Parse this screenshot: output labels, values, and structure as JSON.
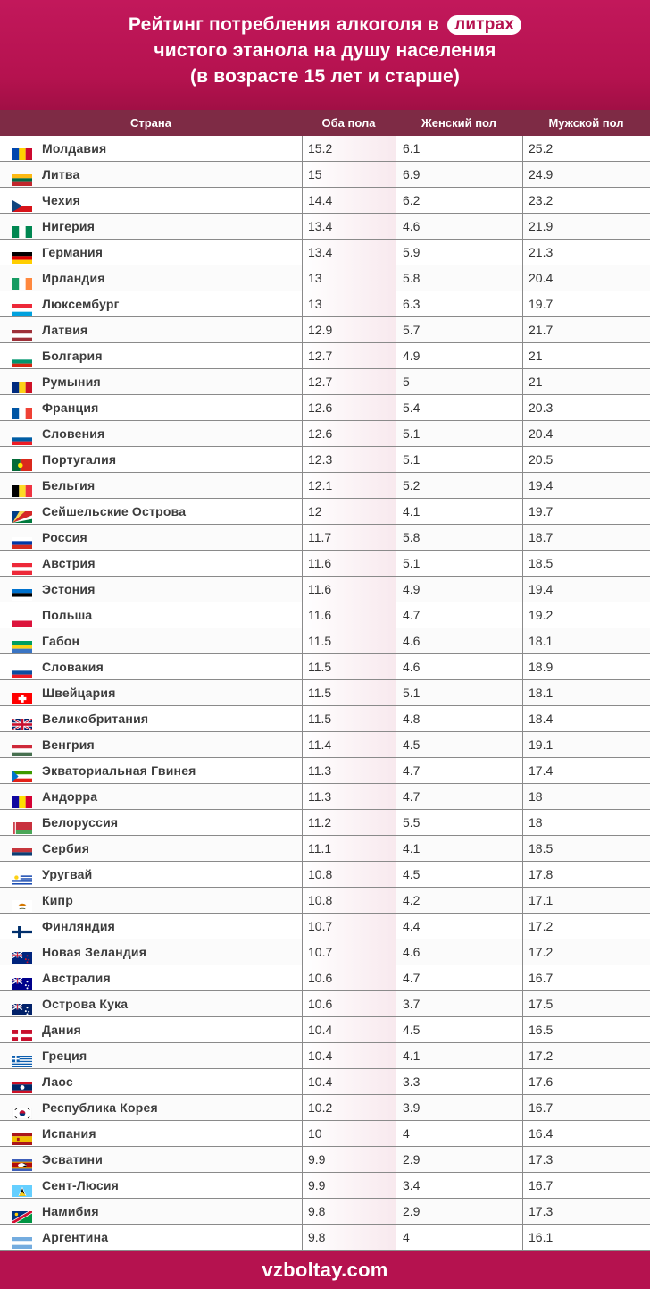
{
  "header": {
    "title_line1_prefix": "Рейтинг потребления алкоголя в",
    "title_highlight": "литрах",
    "title_line2": "чистого этанола на душу населения",
    "title_line3": "(в возрасте 15 лет и старше)"
  },
  "table": {
    "columns": [
      "Страна",
      "Оба пола",
      "Женский пол",
      "Мужской пол"
    ],
    "rows": [
      {
        "country": "Молдавия",
        "both": "15.2",
        "female": "6.1",
        "male": "25.2",
        "flag": {
          "icon": "moldova-flag-icon",
          "type": "v",
          "colors": [
            "#0046ae",
            "#ffd200",
            "#cc092f"
          ]
        }
      },
      {
        "country": "Литва",
        "both": "15",
        "female": "6.9",
        "male": "24.9",
        "flag": {
          "icon": "lithuania-flag-icon",
          "type": "h",
          "colors": [
            "#fdb913",
            "#006a44",
            "#c1272d"
          ]
        }
      },
      {
        "country": "Чехия",
        "both": "14.4",
        "female": "6.2",
        "male": "23.2",
        "flag": {
          "icon": "czechia-flag-icon",
          "type": "tri",
          "colors": [
            "#ffffff",
            "#d7141a",
            "#11457e"
          ]
        }
      },
      {
        "country": "Нигерия",
        "both": "13.4",
        "female": "4.6",
        "male": "21.9",
        "flag": {
          "icon": "nigeria-flag-icon",
          "type": "v",
          "colors": [
            "#008751",
            "#ffffff",
            "#008751"
          ]
        }
      },
      {
        "country": "Германия",
        "both": "13.4",
        "female": "5.9",
        "male": "21.3",
        "flag": {
          "icon": "germany-flag-icon",
          "type": "h",
          "colors": [
            "#000000",
            "#dd0000",
            "#ffce00"
          ]
        }
      },
      {
        "country": "Ирландия",
        "both": "13",
        "female": "5.8",
        "male": "20.4",
        "flag": {
          "icon": "ireland-flag-icon",
          "type": "v",
          "colors": [
            "#169b62",
            "#ffffff",
            "#ff883e"
          ]
        }
      },
      {
        "country": "Люксембург",
        "both": "13",
        "female": "6.3",
        "male": "19.7",
        "flag": {
          "icon": "luxembourg-flag-icon",
          "type": "h",
          "colors": [
            "#ed2939",
            "#ffffff",
            "#00a1de"
          ]
        }
      },
      {
        "country": "Латвия",
        "both": "12.9",
        "female": "5.7",
        "male": "21.7",
        "flag": {
          "icon": "latvia-flag-icon",
          "type": "h",
          "colors": [
            "#9e3039",
            "#ffffff",
            "#9e3039"
          ]
        }
      },
      {
        "country": "Болгария",
        "both": "12.7",
        "female": "4.9",
        "male": "21",
        "flag": {
          "icon": "bulgaria-flag-icon",
          "type": "h",
          "colors": [
            "#ffffff",
            "#00966e",
            "#d62612"
          ]
        }
      },
      {
        "country": "Румыния",
        "both": "12.7",
        "female": "5",
        "male": "21",
        "flag": {
          "icon": "romania-flag-icon",
          "type": "v",
          "colors": [
            "#002b7f",
            "#fcd116",
            "#ce1126"
          ]
        }
      },
      {
        "country": "Франция",
        "both": "12.6",
        "female": "5.4",
        "male": "20.3",
        "flag": {
          "icon": "france-flag-icon",
          "type": "v",
          "colors": [
            "#0055a4",
            "#ffffff",
            "#ef4135"
          ]
        }
      },
      {
        "country": "Словения",
        "both": "12.6",
        "female": "5.1",
        "male": "20.4",
        "flag": {
          "icon": "slovenia-flag-icon",
          "type": "h",
          "colors": [
            "#ffffff",
            "#005da4",
            "#ed1c24"
          ]
        }
      },
      {
        "country": "Португалия",
        "both": "12.3",
        "female": "5.1",
        "male": "20.5",
        "flag": {
          "icon": "portugal-flag-icon",
          "type": "v2",
          "colors": [
            "#046a38",
            "#da291c"
          ]
        }
      },
      {
        "country": "Бельгия",
        "both": "12.1",
        "female": "5.2",
        "male": "19.4",
        "flag": {
          "icon": "belgium-flag-icon",
          "type": "v",
          "colors": [
            "#000000",
            "#fdda24",
            "#ef3340"
          ]
        }
      },
      {
        "country": "Сейшельские Острова",
        "both": "12",
        "female": "4.1",
        "male": "19.7",
        "flag": {
          "icon": "seychelles-flag-icon",
          "type": "rays",
          "colors": [
            "#003f87",
            "#fcd856",
            "#d62828",
            "#ffffff",
            "#007a3d"
          ]
        }
      },
      {
        "country": "Россия",
        "both": "11.7",
        "female": "5.8",
        "male": "18.7",
        "flag": {
          "icon": "russia-flag-icon",
          "type": "h",
          "colors": [
            "#ffffff",
            "#0039a6",
            "#d52b1e"
          ]
        }
      },
      {
        "country": "Австрия",
        "both": "11.6",
        "female": "5.1",
        "male": "18.5",
        "flag": {
          "icon": "austria-flag-icon",
          "type": "h",
          "colors": [
            "#ed2939",
            "#ffffff",
            "#ed2939"
          ]
        }
      },
      {
        "country": "Эстония",
        "both": "11.6",
        "female": "4.9",
        "male": "19.4",
        "flag": {
          "icon": "estonia-flag-icon",
          "type": "h",
          "colors": [
            "#0072ce",
            "#000000",
            "#ffffff"
          ]
        }
      },
      {
        "country": "Польша",
        "both": "11.6",
        "female": "4.7",
        "male": "19.2",
        "flag": {
          "icon": "poland-flag-icon",
          "type": "h",
          "colors": [
            "#ffffff",
            "#dc143c"
          ]
        }
      },
      {
        "country": "Габон",
        "both": "11.5",
        "female": "4.6",
        "male": "18.1",
        "flag": {
          "icon": "gabon-flag-icon",
          "type": "h",
          "colors": [
            "#009e60",
            "#fcd116",
            "#3a75c4"
          ]
        }
      },
      {
        "country": "Словакия",
        "both": "11.5",
        "female": "4.6",
        "male": "18.9",
        "flag": {
          "icon": "slovakia-flag-icon",
          "type": "h",
          "colors": [
            "#ffffff",
            "#0b4ea2",
            "#ee1c25"
          ]
        }
      },
      {
        "country": "Швейцария",
        "both": "11.5",
        "female": "5.1",
        "male": "18.1",
        "flag": {
          "icon": "switzerland-flag-icon",
          "type": "cross",
          "colors": [
            "#ff0000",
            "#ffffff"
          ]
        }
      },
      {
        "country": "Великобритания",
        "both": "11.5",
        "female": "4.8",
        "male": "18.4",
        "flag": {
          "icon": "uk-flag-icon",
          "type": "uk",
          "colors": [
            "#012169",
            "#ffffff",
            "#c8102e"
          ]
        }
      },
      {
        "country": "Венгрия",
        "both": "11.4",
        "female": "4.5",
        "male": "19.1",
        "flag": {
          "icon": "hungary-flag-icon",
          "type": "h",
          "colors": [
            "#ce2939",
            "#ffffff",
            "#477050"
          ]
        }
      },
      {
        "country": "Экваториальная Гвинея",
        "both": "11.3",
        "female": "4.7",
        "male": "17.4",
        "flag": {
          "icon": "equatorial-guinea-flag-icon",
          "type": "htri",
          "colors": [
            "#3e9a00",
            "#ffffff",
            "#e32118",
            "#0073ce"
          ]
        }
      },
      {
        "country": "Андорра",
        "both": "11.3",
        "female": "4.7",
        "male": "18",
        "flag": {
          "icon": "andorra-flag-icon",
          "type": "v",
          "colors": [
            "#10069f",
            "#fedf00",
            "#d50032"
          ]
        }
      },
      {
        "country": "Белоруссия",
        "both": "11.2",
        "female": "5.5",
        "male": "18",
        "flag": {
          "icon": "belarus-flag-icon",
          "type": "by",
          "colors": [
            "#c8313e",
            "#4aa657",
            "#ffffff"
          ]
        }
      },
      {
        "country": "Сербия",
        "both": "11.1",
        "female": "4.1",
        "male": "18.5",
        "flag": {
          "icon": "serbia-flag-icon",
          "type": "h",
          "colors": [
            "#c6363c",
            "#0c4076",
            "#ffffff"
          ]
        }
      },
      {
        "country": "Уругвай",
        "both": "10.8",
        "female": "4.5",
        "male": "17.8",
        "flag": {
          "icon": "uruguay-flag-icon",
          "type": "stripes",
          "colors": [
            "#ffffff",
            "#0038a8",
            "#fcd116"
          ]
        }
      },
      {
        "country": "Кипр",
        "both": "10.8",
        "female": "4.2",
        "male": "17.1",
        "flag": {
          "icon": "cyprus-flag-icon",
          "type": "cy",
          "colors": [
            "#ffffff",
            "#d57800",
            "#4e5b31"
          ]
        }
      },
      {
        "country": "Финляндия",
        "both": "10.7",
        "female": "4.4",
        "male": "17.2",
        "flag": {
          "icon": "finland-flag-icon",
          "type": "nordic",
          "colors": [
            "#ffffff",
            "#002f6c"
          ]
        }
      },
      {
        "country": "Новая Зеландия",
        "both": "10.7",
        "female": "4.6",
        "male": "17.2",
        "flag": {
          "icon": "new-zealand-flag-icon",
          "type": "ensign",
          "colors": [
            "#00247d",
            "#cc142b"
          ]
        }
      },
      {
        "country": "Австралия",
        "both": "10.6",
        "female": "4.7",
        "male": "16.7",
        "flag": {
          "icon": "australia-flag-icon",
          "type": "ensign",
          "colors": [
            "#00008b",
            "#ffffff"
          ]
        }
      },
      {
        "country": "Острова Кука",
        "both": "10.6",
        "female": "3.7",
        "male": "17.5",
        "flag": {
          "icon": "cook-islands-flag-icon",
          "type": "ensign",
          "colors": [
            "#012169",
            "#ffffff"
          ]
        }
      },
      {
        "country": "Дания",
        "both": "10.4",
        "female": "4.5",
        "male": "16.5",
        "flag": {
          "icon": "denmark-flag-icon",
          "type": "nordic",
          "colors": [
            "#c8102e",
            "#ffffff"
          ]
        }
      },
      {
        "country": "Греция",
        "both": "10.4",
        "female": "4.1",
        "male": "17.2",
        "flag": {
          "icon": "greece-flag-icon",
          "type": "gr",
          "colors": [
            "#0d5eaf",
            "#ffffff"
          ]
        }
      },
      {
        "country": "Лаос",
        "both": "10.4",
        "female": "3.3",
        "male": "17.6",
        "flag": {
          "icon": "laos-flag-icon",
          "type": "la",
          "colors": [
            "#ce1126",
            "#002868",
            "#ffffff"
          ]
        }
      },
      {
        "country": "Республика Корея",
        "both": "10.2",
        "female": "3.9",
        "male": "16.7",
        "flag": {
          "icon": "south-korea-flag-icon",
          "type": "kr",
          "colors": [
            "#ffffff",
            "#c60c30",
            "#003478",
            "#000000"
          ]
        }
      },
      {
        "country": "Испания",
        "both": "10",
        "female": "4",
        "male": "16.4",
        "flag": {
          "icon": "spain-flag-icon",
          "type": "es",
          "colors": [
            "#aa151b",
            "#f1bf00"
          ]
        }
      },
      {
        "country": "Эсватини",
        "both": "9.9",
        "female": "2.9",
        "male": "17.3",
        "flag": {
          "icon": "eswatini-flag-icon",
          "type": "sz",
          "colors": [
            "#3e5eb9",
            "#ffd900",
            "#b10c0c",
            "#ffffff",
            "#000000"
          ]
        }
      },
      {
        "country": "Сент-Люсия",
        "both": "9.9",
        "female": "3.4",
        "male": "16.7",
        "flag": {
          "icon": "saint-lucia-flag-icon",
          "type": "lc",
          "colors": [
            "#65cfff",
            "#ffffff",
            "#000000",
            "#fcd116"
          ]
        }
      },
      {
        "country": "Намибия",
        "both": "9.8",
        "female": "2.9",
        "male": "17.3",
        "flag": {
          "icon": "namibia-flag-icon",
          "type": "na",
          "colors": [
            "#003580",
            "#d21034",
            "#009543",
            "#ffffff",
            "#ffce00"
          ]
        }
      },
      {
        "country": "Аргентина",
        "both": "9.8",
        "female": "4",
        "male": "16.1",
        "flag": {
          "icon": "argentina-flag-icon",
          "type": "h",
          "colors": [
            "#74acdf",
            "#ffffff",
            "#74acdf"
          ]
        }
      }
    ]
  },
  "footer": {
    "site": "vzboltay.com"
  }
}
